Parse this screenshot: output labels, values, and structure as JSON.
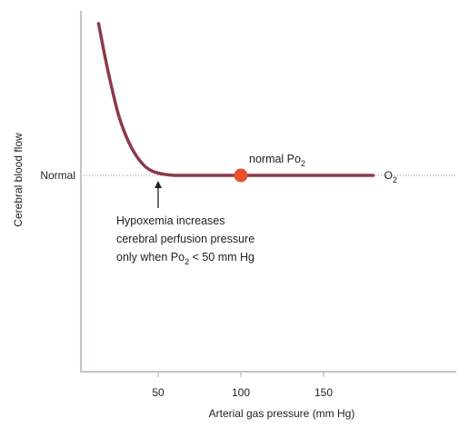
{
  "chart_data": {
    "type": "line",
    "title": "",
    "xlabel": "Arterial gas pressure (mm Hg)",
    "ylabel": "Cerebral blood flow",
    "xlim": [
      5,
      190
    ],
    "x_ticks": [
      "50",
      "100",
      "150"
    ],
    "x_tick_values": [
      50,
      100,
      150
    ],
    "y_tick_label": "Normal",
    "y_normal_value": 1.0,
    "ylim": [
      0,
      3.4
    ],
    "grid": false,
    "series": [
      {
        "name": "O2",
        "color": "#8b3a4a",
        "x": [
          14,
          18,
          22,
          26,
          30,
          34,
          38,
          42,
          46,
          50,
          55,
          60,
          65,
          70,
          80,
          100,
          130,
          160,
          180
        ],
        "y": [
          3.0,
          2.55,
          2.15,
          1.8,
          1.55,
          1.36,
          1.22,
          1.12,
          1.06,
          1.03,
          1.01,
          1.0,
          1.0,
          1.0,
          1.0,
          1.0,
          1.0,
          1.0,
          1.0
        ]
      }
    ],
    "series_label": {
      "text": "O",
      "sub": "2"
    },
    "marker": {
      "x": 100,
      "y": 1.0,
      "color": "#e8502a",
      "label": "normal Po",
      "label_sub": "2"
    },
    "annotation": {
      "x": 50,
      "lines": [
        "Hypoxemia increases",
        "cerebral perfusion pressure",
        "only when Po"
      ],
      "line3_sub": "2",
      "line3_suffix": " < 50 mm Hg"
    }
  }
}
